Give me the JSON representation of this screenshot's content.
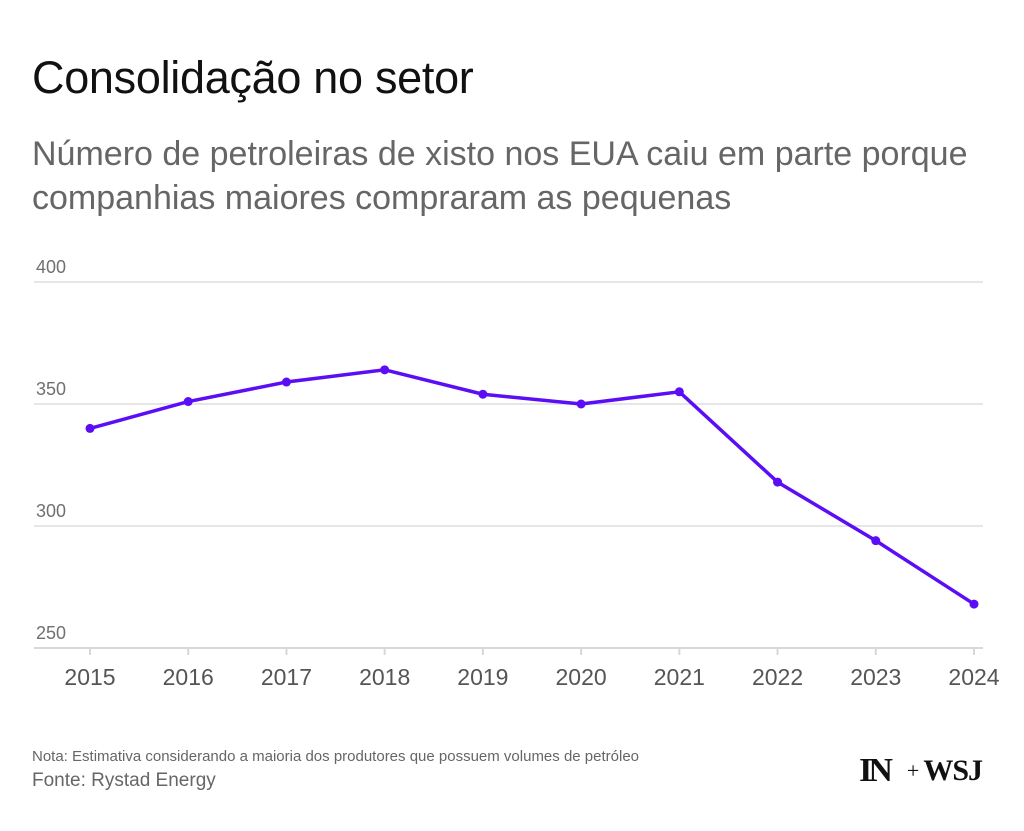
{
  "header": {
    "title": "Consolidação no setor",
    "subtitle": "Número de petroleiras de xisto nos EUA caiu em parte porque companhias maiores compraram as pequenas"
  },
  "chart_data": {
    "type": "line",
    "title": "Consolidação no setor",
    "subtitle": "Número de petroleiras de xisto nos EUA caiu em parte porque companhias maiores compraram as pequenas",
    "xlabel": "",
    "ylabel": "",
    "categories": [
      "2015",
      "2016",
      "2017",
      "2018",
      "2019",
      "2020",
      "2021",
      "2022",
      "2023",
      "2024"
    ],
    "series": [
      {
        "name": "Petroleiras de xisto",
        "values": [
          340,
          351,
          359,
          364,
          354,
          350,
          355,
          318,
          294,
          268
        ],
        "color": "#5b0ef5"
      }
    ],
    "yticks": [
      400,
      350,
      300,
      250
    ],
    "ylim": [
      250,
      400
    ],
    "grid": true
  },
  "footer": {
    "note": "Nota: Estimativa considerando a maioria dos produtores que possuem volumes de petróleo",
    "source": "Fonte: Rystad Energy"
  },
  "logo": {
    "in": "IN",
    "plus": "+",
    "wsj": "WSJ"
  },
  "colors": {
    "line": "#5b0ef5",
    "grid": "#e6e6e6",
    "axis": "#d8d8d8",
    "title": "#111111",
    "muted": "#666666"
  }
}
